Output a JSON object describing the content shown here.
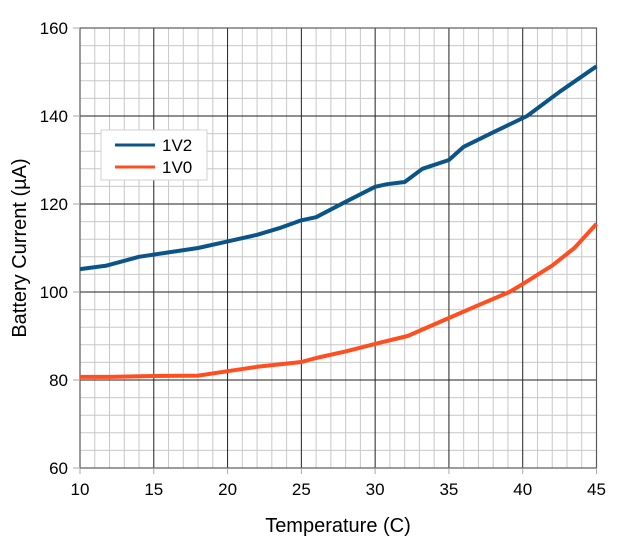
{
  "chart_data": {
    "type": "line",
    "title": "",
    "xlabel": "Temperature (C)",
    "ylabel": "Battery Current (µA)",
    "xlim": [
      10,
      45
    ],
    "ylim": [
      60,
      160
    ],
    "x_major_step": 5,
    "x_minor_step": 1,
    "y_major_step": 20,
    "y_minor_step": 4,
    "x_ticks": [
      "10",
      "15",
      "20",
      "25",
      "30",
      "35",
      "40",
      "45"
    ],
    "y_ticks": [
      "60",
      "80",
      "100",
      "120",
      "140",
      "160"
    ],
    "grid": true,
    "legend_position": "upper-left",
    "series": [
      {
        "name": "1V2",
        "color": "#0b5488",
        "x": [
          10,
          11.8,
          14,
          16,
          18,
          20,
          22,
          23.5,
          25,
          26,
          28,
          30,
          30.8,
          32,
          33.2,
          35,
          36,
          38,
          40.3,
          42.5,
          45
        ],
        "y": [
          105.2,
          106,
          108,
          109,
          110,
          111.5,
          113,
          114.5,
          116.3,
          117,
          120.5,
          123.9,
          124.5,
          125,
          128,
          130,
          133,
          136.3,
          140,
          145.5,
          151.3
        ]
      },
      {
        "name": "1V0",
        "color": "#ff4f20",
        "x": [
          10,
          12,
          15,
          18,
          20,
          22,
          25,
          26,
          28,
          30,
          32.2,
          35,
          37,
          39.1,
          40,
          42,
          43.5,
          45
        ],
        "y": [
          80.7,
          80.7,
          80.9,
          81,
          82,
          83,
          84.1,
          85,
          86.5,
          88.2,
          90,
          94.1,
          97,
          100,
          101.8,
          106,
          110,
          115.5
        ]
      }
    ]
  }
}
